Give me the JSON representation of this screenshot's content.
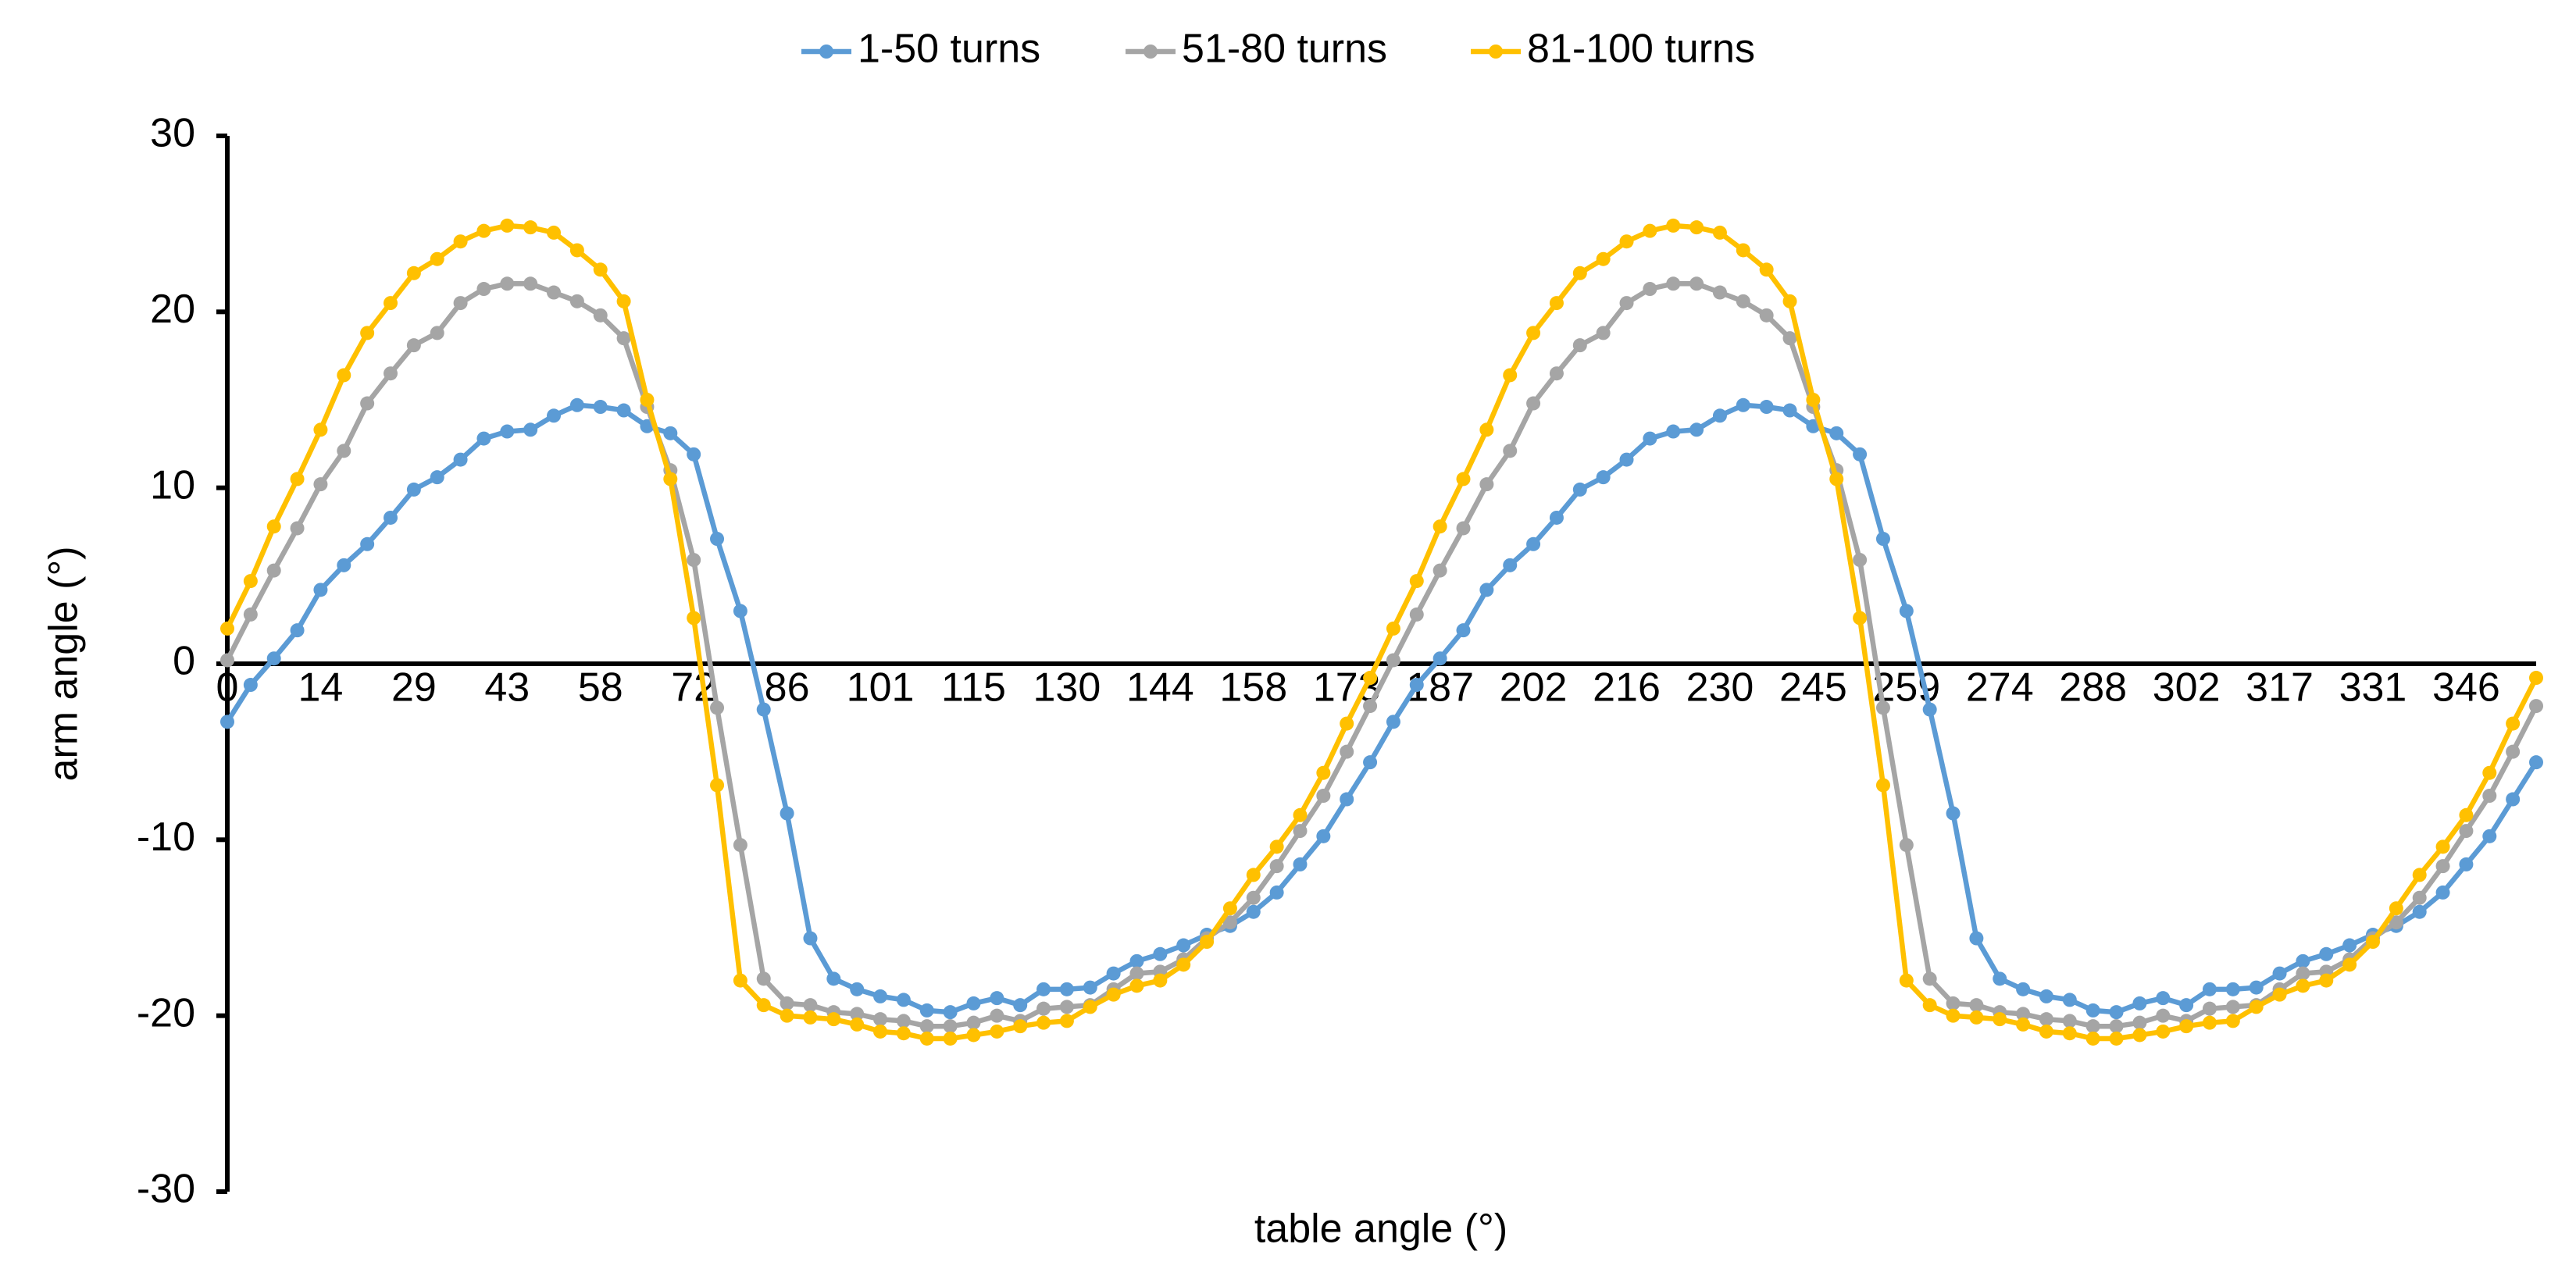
{
  "chart_data": {
    "type": "line",
    "x_label": "table angle (°)",
    "y_label": "arm angle (°)",
    "categories": [
      "0",
      null,
      null,
      null,
      "14",
      null,
      null,
      null,
      "29",
      null,
      null,
      null,
      "43",
      null,
      null,
      null,
      "58",
      null,
      null,
      null,
      "72",
      null,
      null,
      null,
      "86",
      null,
      null,
      null,
      "101",
      null,
      null,
      null,
      "115",
      null,
      null,
      null,
      "130",
      null,
      null,
      null,
      "144",
      null,
      null,
      null,
      "158",
      null,
      null,
      null,
      "173",
      null,
      null,
      null,
      "187",
      null,
      null,
      null,
      "202",
      null,
      null,
      null,
      "216",
      null,
      null,
      null,
      "230",
      null,
      null,
      null,
      "245",
      null,
      null,
      null,
      "259",
      null,
      null,
      null,
      "274",
      null,
      null,
      null,
      "288",
      null,
      null,
      null,
      "302",
      null,
      null,
      null,
      "317",
      null,
      null,
      null,
      "331",
      null,
      null,
      null,
      "346",
      null,
      null,
      null
    ],
    "series": [
      {
        "name": "1-50 turns",
        "color": "#5b9bd5",
        "values": [
          -3.3,
          -1.2,
          0.3,
          1.9,
          4.2,
          5.6,
          6.8,
          8.3,
          9.9,
          10.6,
          11.6,
          12.8,
          13.2,
          13.3,
          14.1,
          14.7,
          14.6,
          14.4,
          13.5,
          13.1,
          11.9,
          7.1,
          3.0,
          -2.6,
          -8.5,
          -15.6,
          -17.9,
          -18.5,
          -18.9,
          -19.1,
          -19.7,
          -19.8,
          -19.3,
          -19.0,
          -19.4,
          -18.5,
          -18.5,
          -18.4,
          -17.6,
          -16.9,
          -16.5,
          -16.0,
          -15.4,
          -14.9,
          -14.1,
          -13.0,
          -11.4,
          -9.8,
          -7.7,
          -5.6,
          -3.3,
          -1.2,
          0.3,
          1.9,
          4.2,
          5.6,
          6.8,
          8.3,
          9.9,
          10.6,
          11.6,
          12.8,
          13.2,
          13.3,
          14.1,
          14.7,
          14.6,
          14.4,
          13.5,
          13.1,
          11.9,
          7.1,
          3.0,
          -2.6,
          -8.5,
          -15.6,
          -17.9,
          -18.5,
          -18.9,
          -19.1,
          -19.7,
          -19.8,
          -19.3,
          -19.0,
          -19.4,
          -18.5,
          -18.5,
          -18.4,
          -17.6,
          -16.9,
          -16.5,
          -16.0,
          -15.4,
          -14.9,
          -14.1,
          -13.0,
          -11.4,
          -9.8,
          -7.7,
          -5.6
        ]
      },
      {
        "name": "51-80 turns",
        "color": "#a5a5a5",
        "values": [
          0.2,
          2.8,
          5.3,
          7.7,
          10.2,
          12.1,
          14.8,
          16.5,
          18.1,
          18.8,
          20.5,
          21.3,
          21.6,
          21.6,
          21.1,
          20.6,
          19.8,
          18.5,
          14.6,
          11.0,
          5.9,
          -2.5,
          -10.3,
          -17.9,
          -19.3,
          -19.4,
          -19.8,
          -19.9,
          -20.2,
          -20.3,
          -20.6,
          -20.6,
          -20.4,
          -20.0,
          -20.3,
          -19.6,
          -19.5,
          -19.4,
          -18.5,
          -17.6,
          -17.5,
          -16.8,
          -15.6,
          -14.7,
          -13.3,
          -11.5,
          -9.5,
          -7.5,
          -5.0,
          -2.4,
          0.2,
          2.8,
          5.3,
          7.7,
          10.2,
          12.1,
          14.8,
          16.5,
          18.1,
          18.8,
          20.5,
          21.3,
          21.6,
          21.6,
          21.1,
          20.6,
          19.8,
          18.5,
          14.6,
          11.0,
          5.9,
          -2.5,
          -10.3,
          -17.9,
          -19.3,
          -19.4,
          -19.8,
          -19.9,
          -20.2,
          -20.3,
          -20.6,
          -20.6,
          -20.4,
          -20.0,
          -20.3,
          -19.6,
          -19.5,
          -19.4,
          -18.5,
          -17.6,
          -17.5,
          -16.8,
          -15.6,
          -14.7,
          -13.3,
          -11.5,
          -9.5,
          -7.5,
          -5.0,
          -2.4
        ]
      },
      {
        "name": "81-100 turns",
        "color": "#ffc000",
        "values": [
          2.0,
          4.7,
          7.8,
          10.5,
          13.3,
          16.4,
          18.8,
          20.5,
          22.2,
          23.0,
          24.0,
          24.6,
          24.9,
          24.8,
          24.5,
          23.5,
          22.4,
          20.6,
          15.0,
          10.5,
          2.6,
          -6.9,
          -18.0,
          -19.4,
          -20.0,
          -20.1,
          -20.2,
          -20.5,
          -20.9,
          -21.0,
          -21.3,
          -21.3,
          -21.1,
          -20.9,
          -20.6,
          -20.4,
          -20.3,
          -19.5,
          -18.8,
          -18.3,
          -18.0,
          -17.1,
          -15.8,
          -13.9,
          -12.0,
          -10.4,
          -8.6,
          -6.2,
          -3.4,
          -0.8,
          2.0,
          4.7,
          7.8,
          10.5,
          13.3,
          16.4,
          18.8,
          20.5,
          22.2,
          23.0,
          24.0,
          24.6,
          24.9,
          24.8,
          24.5,
          23.5,
          22.4,
          20.6,
          15.0,
          10.5,
          2.6,
          -6.9,
          -18.0,
          -19.4,
          -20.0,
          -20.1,
          -20.2,
          -20.5,
          -20.9,
          -21.0,
          -21.3,
          -21.3,
          -21.1,
          -20.9,
          -20.6,
          -20.4,
          -20.3,
          -19.5,
          -18.8,
          -18.3,
          -18.0,
          -17.1,
          -15.8,
          -13.9,
          -12.0,
          -10.4,
          -8.6,
          -6.2,
          -3.4,
          -0.8
        ]
      }
    ],
    "ylim": [
      -30,
      30
    ],
    "yticks": [
      -30,
      -20,
      -10,
      0,
      10,
      20,
      30
    ],
    "legend": "top",
    "grid": false
  }
}
